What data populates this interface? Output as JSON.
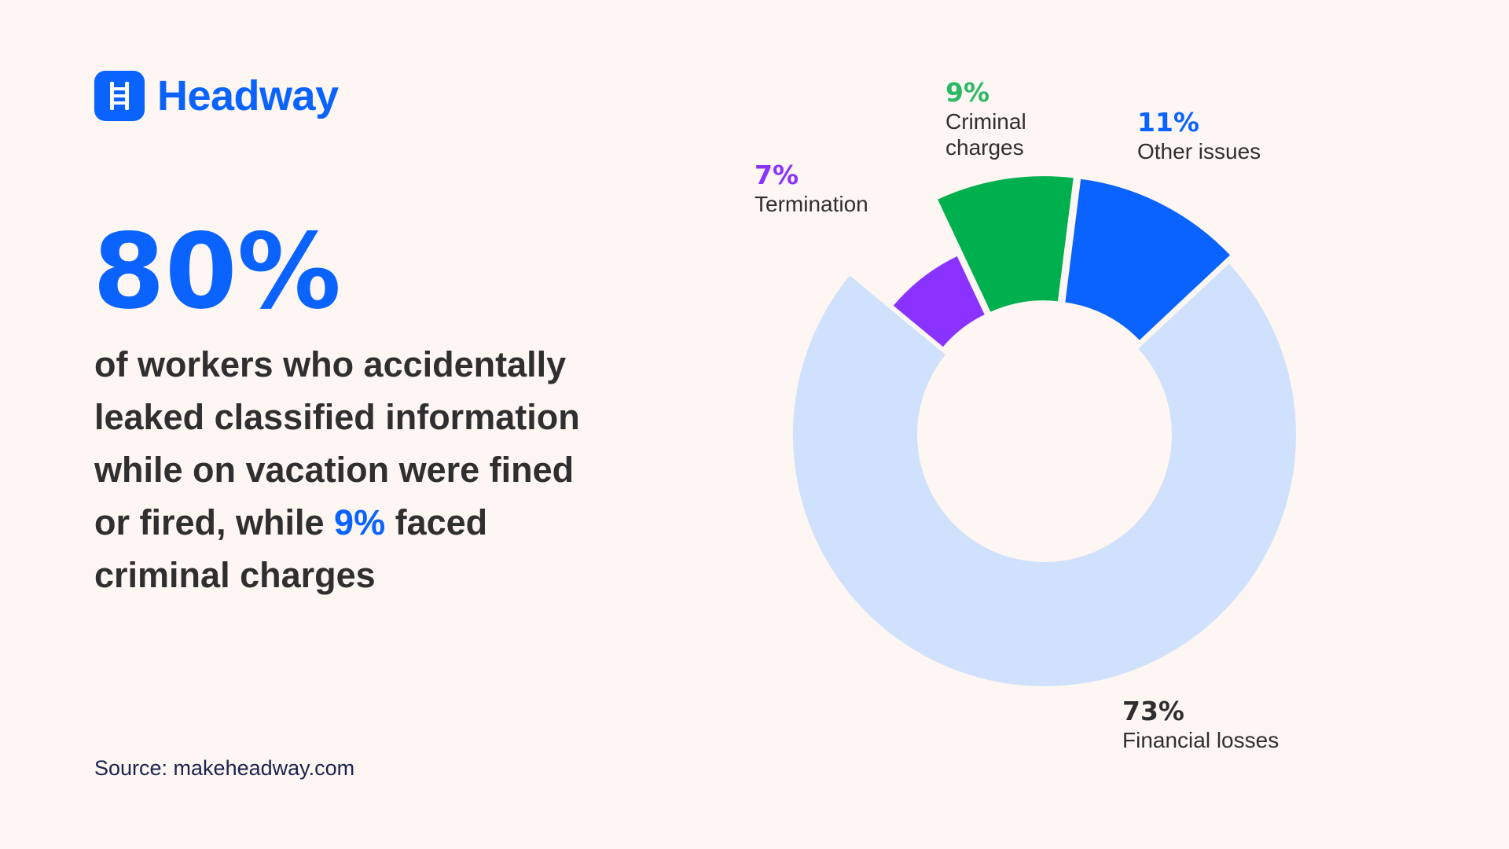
{
  "brand": {
    "name": "Headway",
    "color": "#0a63ff",
    "icon": "ladder-icon"
  },
  "headline": {
    "value": "80%"
  },
  "description": {
    "part1": "of workers who accidentally leaked classified information while on vacation were fined or fired, while ",
    "highlight": "9%",
    "part2": " faced criminal charges"
  },
  "source": "Source: makeheadway.com",
  "chart_data": {
    "type": "pie",
    "variant": "donut",
    "title": "",
    "categories": [
      "Financial losses",
      "Termination",
      "Criminal charges",
      "Other issues"
    ],
    "values": [
      73,
      7,
      9,
      11
    ],
    "labels": [
      "73%",
      "7%",
      "9%",
      "11%"
    ],
    "colors": [
      "#cfe1fd",
      "#8a32ff",
      "#00b04f",
      "#0a63ff"
    ],
    "label_colors": [
      "#2f2f2f",
      "#8a32ff",
      "#2db866",
      "#0a63ff"
    ]
  }
}
